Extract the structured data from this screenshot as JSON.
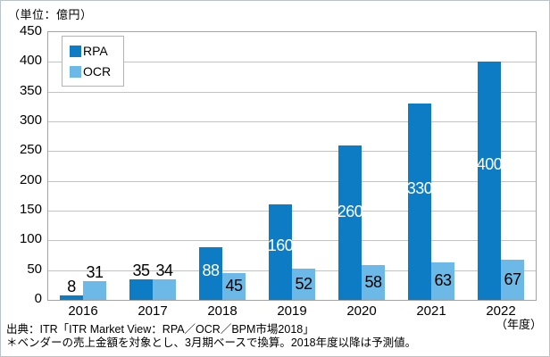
{
  "page": {
    "unit_label": "（単位：億円）",
    "x_axis_unit_label": "（年度）",
    "source_line1": "出典：ITR「ITR Market View：RPA／OCR／BPM市場2018」",
    "source_line2": "＊ベンダーの売上金額を対象とし、3月期ベースで換算。2018年度以降は予測値。"
  },
  "chart_data": {
    "type": "bar",
    "title": "",
    "categories": [
      "2016",
      "2017",
      "2018",
      "2019",
      "2020",
      "2021",
      "2022"
    ],
    "series": [
      {
        "name": "RPA",
        "color": "#0d7cc4",
        "values": [
          8,
          35,
          88,
          160,
          260,
          330,
          400
        ],
        "label_inside": [
          false,
          false,
          true,
          true,
          true,
          true,
          true
        ],
        "inside_label_color": "#ffffff"
      },
      {
        "name": "OCR",
        "color": "#6cb8e6",
        "values": [
          31,
          34,
          45,
          52,
          58,
          63,
          67
        ],
        "label_inside": [
          false,
          false,
          true,
          true,
          true,
          true,
          true
        ],
        "inside_label_color": "#000000"
      }
    ],
    "ylabel": "（単位：億円）",
    "xlabel": "（年度）",
    "ylim": [
      0,
      450
    ],
    "yticks": [
      0,
      50,
      100,
      150,
      200,
      250,
      300,
      350,
      400,
      450
    ],
    "grid": true,
    "legend_position": "top-left"
  }
}
